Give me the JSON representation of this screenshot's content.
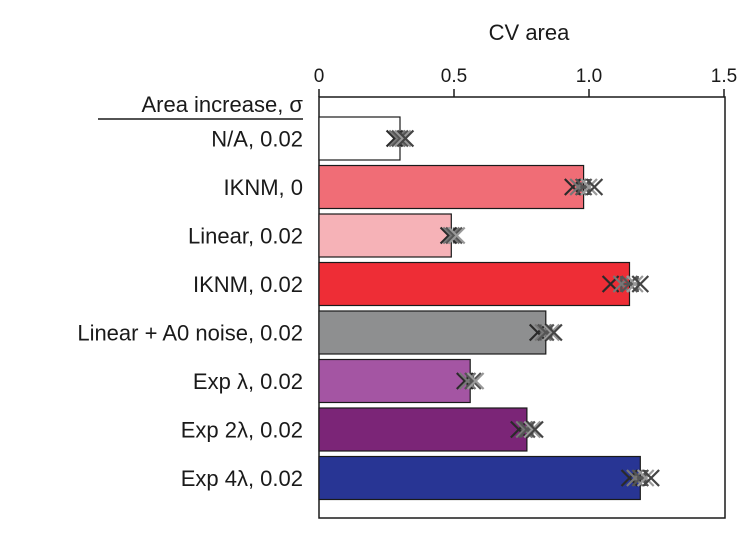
{
  "chart_data": {
    "type": "bar",
    "orientation": "horizontal",
    "xlabel": "CV area",
    "category_header": "Area increase, σ",
    "xlim": [
      0,
      1.5
    ],
    "xticks": [
      0,
      0.5,
      1.0,
      1.5
    ],
    "xtick_labels": [
      "0",
      "0.5",
      "1.0",
      "1.5"
    ],
    "xaxis_position": "top",
    "grid": false,
    "categories": [
      "N/A, 0.02",
      "IKNM, 0",
      "Linear, 0.02",
      "IKNM, 0.02",
      "Linear + A0 noise, 0.02",
      "Exp λ, 0.02",
      "Exp 2λ, 0.02",
      "Exp 4λ, 0.02"
    ],
    "values": [
      0.3,
      0.98,
      0.49,
      1.15,
      0.84,
      0.56,
      0.77,
      1.19
    ],
    "colors": [
      "#ffffff",
      "#f06d76",
      "#f6b2b7",
      "#ee2d36",
      "#8e8f90",
      "#a455a3",
      "#7b2577",
      "#283594"
    ],
    "replicate_markers": [
      [
        0.28,
        0.29,
        0.3,
        0.31,
        0.32
      ],
      [
        0.94,
        0.96,
        0.98,
        1.0,
        1.02
      ],
      [
        0.48,
        0.49,
        0.5,
        0.51
      ],
      [
        1.08,
        1.12,
        1.15,
        1.17,
        1.19
      ],
      [
        0.81,
        0.83,
        0.84,
        0.86,
        0.87
      ],
      [
        0.54,
        0.55,
        0.57,
        0.58
      ],
      [
        0.74,
        0.76,
        0.77,
        0.79,
        0.8
      ],
      [
        1.15,
        1.17,
        1.19,
        1.21,
        1.23
      ]
    ],
    "errors": [
      0.01,
      0.02,
      0.01,
      0.03,
      0.02,
      0.01,
      0.02,
      0.02
    ]
  }
}
